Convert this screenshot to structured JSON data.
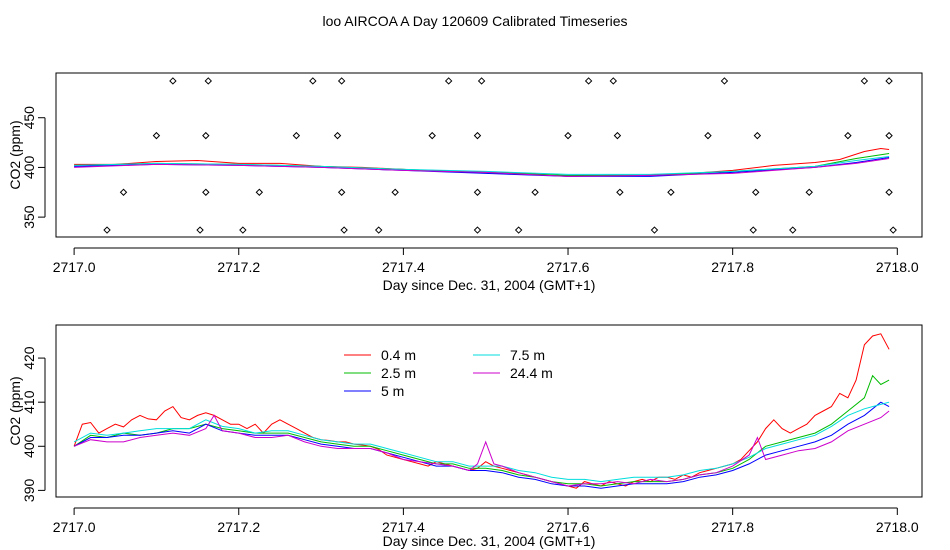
{
  "main_title": "loo AIRCOA A  Day 120609  Calibrated Timeseries",
  "chart_data": [
    {
      "type": "line",
      "xlabel": "Day since Dec. 31, 2004 (GMT+1)",
      "ylabel": "CO2 (ppm)",
      "xlim": [
        2716.978,
        2718.03
      ],
      "ylim": [
        330,
        495
      ],
      "x_ticks": [
        2717.0,
        2717.2,
        2717.4,
        2717.6,
        2717.8,
        2718.0
      ],
      "x_tick_labels": [
        "2717.0",
        "2717.2",
        "2717.4",
        "2717.6",
        "2717.8",
        "2718.0"
      ],
      "y_ticks": [
        350,
        400,
        450
      ],
      "y_tick_labels": [
        "350",
        "400",
        "450"
      ],
      "grid": false,
      "series": [
        {
          "color": "#ff0000",
          "x": [
            2717.0,
            2717.05,
            2717.1,
            2717.15,
            2717.2,
            2717.25,
            2717.3,
            2717.35,
            2717.4,
            2717.45,
            2717.5,
            2717.55,
            2717.6,
            2717.65,
            2717.7,
            2717.75,
            2717.8,
            2717.85,
            2717.9,
            2717.93,
            2717.96,
            2717.98,
            2717.99
          ],
          "y": [
            403,
            403,
            406,
            407,
            404,
            404,
            401,
            400,
            398,
            396,
            395,
            394,
            391,
            392,
            392,
            394,
            397,
            402,
            405,
            408,
            416,
            419,
            418
          ]
        },
        {
          "color": "#00bb00",
          "x": [
            2717.0,
            2717.1,
            2717.2,
            2717.3,
            2717.4,
            2717.5,
            2717.6,
            2717.7,
            2717.8,
            2717.9,
            2717.95,
            2717.99
          ],
          "y": [
            402,
            404,
            403,
            401,
            398,
            395,
            392,
            392,
            396,
            401,
            409,
            414
          ]
        },
        {
          "color": "#0000ff",
          "x": [
            2717.0,
            2717.1,
            2717.2,
            2717.3,
            2717.4,
            2717.5,
            2717.6,
            2717.7,
            2717.8,
            2717.9,
            2717.95,
            2717.99
          ],
          "y": [
            401,
            403,
            402,
            400,
            397,
            394,
            391,
            391,
            395,
            400,
            405,
            410
          ]
        },
        {
          "color": "#00dddd",
          "x": [
            2717.0,
            2717.1,
            2717.2,
            2717.3,
            2717.4,
            2717.5,
            2717.6,
            2717.7,
            2717.8,
            2717.9,
            2717.95,
            2717.99
          ],
          "y": [
            402,
            404,
            403,
            401,
            398,
            396,
            393,
            393,
            396,
            401,
            407,
            411
          ]
        },
        {
          "color": "#cc00cc",
          "x": [
            2717.0,
            2717.1,
            2717.2,
            2717.3,
            2717.4,
            2717.5,
            2717.6,
            2717.7,
            2717.8,
            2717.9,
            2717.95,
            2717.99
          ],
          "y": [
            400,
            403,
            402,
            400,
            397,
            395,
            391,
            392,
            394,
            400,
            404,
            409
          ]
        }
      ],
      "points": {
        "x": [
          2717.04,
          2717.06,
          2717.1,
          2717.12,
          2717.153,
          2717.16,
          2717.16,
          2717.163,
          2717.205,
          2717.225,
          2717.27,
          2717.29,
          2717.32,
          2717.325,
          2717.325,
          2717.328,
          2717.37,
          2717.39,
          2717.435,
          2717.455,
          2717.49,
          2717.49,
          2717.49,
          2717.495,
          2717.54,
          2717.56,
          2717.6,
          2717.625,
          2717.655,
          2717.66,
          2717.663,
          2717.705,
          2717.725,
          2717.77,
          2717.79,
          2717.825,
          2717.828,
          2717.83,
          2717.873,
          2717.893,
          2717.94,
          2717.96,
          2717.99,
          2717.99,
          2717.99,
          2717.995
        ],
        "y": [
          337,
          375,
          432,
          487,
          337,
          375,
          432,
          487,
          337,
          375,
          432,
          487,
          432,
          375,
          487,
          337,
          337,
          375,
          432,
          487,
          432,
          375,
          337,
          487,
          337,
          375,
          432,
          487,
          487,
          432,
          375,
          337,
          375,
          432,
          487,
          337,
          375,
          432,
          337,
          375,
          432,
          487,
          487,
          432,
          375,
          337
        ]
      }
    },
    {
      "type": "line",
      "xlabel": "Day since Dec. 31, 2004 (GMT+1)",
      "ylabel": "CO2 (ppm)",
      "xlim": [
        2716.978,
        2718.03
      ],
      "ylim": [
        388.5,
        427.5
      ],
      "x_ticks": [
        2717.0,
        2717.2,
        2717.4,
        2717.6,
        2717.8,
        2718.0
      ],
      "x_tick_labels": [
        "2717.0",
        "2717.2",
        "2717.4",
        "2717.6",
        "2717.8",
        "2718.0"
      ],
      "y_ticks": [
        390,
        400,
        410,
        420
      ],
      "y_tick_labels": [
        "390",
        "400",
        "410",
        "420"
      ],
      "grid": false,
      "legend_position": "top-left",
      "series": [
        {
          "name": "0.4 m",
          "color": "#ff0000",
          "x": [
            2717.0,
            2717.01,
            2717.02,
            2717.03,
            2717.04,
            2717.05,
            2717.06,
            2717.07,
            2717.08,
            2717.09,
            2717.1,
            2717.11,
            2717.12,
            2717.13,
            2717.14,
            2717.15,
            2717.16,
            2717.17,
            2717.18,
            2717.19,
            2717.2,
            2717.21,
            2717.22,
            2717.23,
            2717.24,
            2717.25,
            2717.26,
            2717.27,
            2717.28,
            2717.29,
            2717.3,
            2717.31,
            2717.32,
            2717.33,
            2717.34,
            2717.35,
            2717.36,
            2717.37,
            2717.38,
            2717.39,
            2717.4,
            2717.41,
            2717.42,
            2717.43,
            2717.44,
            2717.45,
            2717.46,
            2717.47,
            2717.48,
            2717.49,
            2717.5,
            2717.51,
            2717.52,
            2717.53,
            2717.54,
            2717.55,
            2717.56,
            2717.57,
            2717.58,
            2717.59,
            2717.6,
            2717.61,
            2717.62,
            2717.63,
            2717.64,
            2717.65,
            2717.66,
            2717.67,
            2717.68,
            2717.69,
            2717.7,
            2717.71,
            2717.72,
            2717.73,
            2717.74,
            2717.75,
            2717.76,
            2717.77,
            2717.78,
            2717.79,
            2717.8,
            2717.81,
            2717.82,
            2717.83,
            2717.84,
            2717.85,
            2717.86,
            2717.87,
            2717.88,
            2717.89,
            2717.9,
            2717.91,
            2717.92,
            2717.93,
            2717.94,
            2717.95,
            2717.96,
            2717.97,
            2717.98,
            2717.99
          ],
          "y": [
            400.0,
            405.0,
            405.4,
            403.0,
            404.0,
            405.0,
            404.4,
            406.0,
            407.0,
            406.2,
            406.0,
            408.0,
            409.0,
            406.5,
            406.0,
            407.0,
            407.6,
            407.0,
            406.0,
            405.0,
            405.0,
            404.0,
            405.0,
            403.0,
            405.0,
            406.0,
            405.0,
            404.0,
            403.0,
            402.0,
            401.5,
            401.3,
            401.0,
            401.0,
            400.5,
            400.3,
            400.0,
            399.3,
            398.0,
            397.5,
            397.0,
            396.5,
            396.0,
            395.5,
            396.5,
            396.0,
            395.5,
            395.0,
            394.5,
            395.0,
            396.5,
            395.5,
            395.0,
            394.5,
            394.0,
            393.5,
            393.0,
            392.5,
            392.0,
            391.5,
            391.0,
            390.5,
            392.0,
            391.5,
            391.0,
            392.0,
            391.5,
            391.0,
            392.0,
            392.5,
            392.0,
            393.0,
            393.0,
            392.5,
            393.5,
            393.0,
            394.0,
            394.5,
            395.0,
            395.5,
            396.0,
            397.0,
            399.0,
            401.0,
            404.0,
            406.0,
            404.0,
            403.0,
            404.0,
            405.0,
            407.0,
            408.0,
            409.0,
            412.0,
            411.0,
            415.0,
            423.0,
            425.0,
            425.5,
            422.0
          ]
        },
        {
          "name": "2.5 m",
          "color": "#00bb00",
          "x": [
            2717.0,
            2717.02,
            2717.04,
            2717.06,
            2717.08,
            2717.1,
            2717.12,
            2717.14,
            2717.16,
            2717.18,
            2717.2,
            2717.22,
            2717.24,
            2717.26,
            2717.28,
            2717.3,
            2717.32,
            2717.34,
            2717.36,
            2717.38,
            2717.4,
            2717.42,
            2717.44,
            2717.46,
            2717.48,
            2717.5,
            2717.52,
            2717.54,
            2717.56,
            2717.58,
            2717.6,
            2717.62,
            2717.64,
            2717.66,
            2717.68,
            2717.7,
            2717.72,
            2717.74,
            2717.76,
            2717.78,
            2717.8,
            2717.82,
            2717.84,
            2717.86,
            2717.88,
            2717.9,
            2717.92,
            2717.94,
            2717.96,
            2717.97,
            2717.98,
            2717.99
          ],
          "y": [
            400.0,
            402.5,
            402.0,
            403.0,
            402.5,
            403.0,
            404.0,
            404.0,
            405.0,
            404.0,
            403.5,
            403.0,
            403.0,
            403.0,
            402.0,
            401.0,
            400.5,
            400.0,
            400.0,
            399.0,
            398.0,
            397.0,
            396.0,
            396.0,
            395.0,
            395.0,
            394.5,
            393.5,
            393.0,
            392.0,
            391.5,
            391.5,
            391.0,
            391.5,
            392.0,
            392.0,
            392.0,
            392.5,
            393.5,
            394.0,
            395.0,
            397.0,
            400.0,
            401.0,
            402.0,
            403.0,
            405.0,
            408.0,
            411.0,
            416.0,
            414.0,
            415.0
          ]
        },
        {
          "name": "5 m",
          "color": "#0000ff",
          "x": [
            2717.0,
            2717.02,
            2717.04,
            2717.06,
            2717.08,
            2717.1,
            2717.12,
            2717.14,
            2717.16,
            2717.18,
            2717.2,
            2717.22,
            2717.24,
            2717.26,
            2717.28,
            2717.3,
            2717.32,
            2717.34,
            2717.36,
            2717.38,
            2717.4,
            2717.42,
            2717.44,
            2717.46,
            2717.48,
            2717.5,
            2717.52,
            2717.54,
            2717.56,
            2717.58,
            2717.6,
            2717.62,
            2717.64,
            2717.66,
            2717.68,
            2717.7,
            2717.72,
            2717.74,
            2717.76,
            2717.78,
            2717.8,
            2717.82,
            2717.84,
            2717.86,
            2717.88,
            2717.9,
            2717.92,
            2717.94,
            2717.96,
            2717.98,
            2717.99
          ],
          "y": [
            400.0,
            402.0,
            402.0,
            402.5,
            402.5,
            403.0,
            403.5,
            403.0,
            405.0,
            403.5,
            403.0,
            402.5,
            402.5,
            402.5,
            401.5,
            400.5,
            400.0,
            399.5,
            399.5,
            398.5,
            397.5,
            396.5,
            395.5,
            395.5,
            394.5,
            394.5,
            394.0,
            393.0,
            392.5,
            391.5,
            391.0,
            391.0,
            390.5,
            391.0,
            391.5,
            391.5,
            391.5,
            392.0,
            393.0,
            393.5,
            394.5,
            396.0,
            398.0,
            399.0,
            400.0,
            401.0,
            402.5,
            405.0,
            407.0,
            410.0,
            409.0
          ]
        },
        {
          "name": "7.5 m",
          "color": "#00dddd",
          "x": [
            2717.0,
            2717.02,
            2717.04,
            2717.06,
            2717.08,
            2717.1,
            2717.12,
            2717.14,
            2717.16,
            2717.18,
            2717.2,
            2717.22,
            2717.24,
            2717.26,
            2717.28,
            2717.3,
            2717.32,
            2717.34,
            2717.36,
            2717.38,
            2717.4,
            2717.42,
            2717.44,
            2717.46,
            2717.48,
            2717.5,
            2717.52,
            2717.54,
            2717.56,
            2717.58,
            2717.6,
            2717.62,
            2717.64,
            2717.66,
            2717.68,
            2717.7,
            2717.72,
            2717.74,
            2717.76,
            2717.78,
            2717.8,
            2717.82,
            2717.84,
            2717.86,
            2717.88,
            2717.9,
            2717.92,
            2717.94,
            2717.96,
            2717.98,
            2717.99
          ],
          "y": [
            401.0,
            403.0,
            402.5,
            403.0,
            403.5,
            404.0,
            404.0,
            404.0,
            406.0,
            404.5,
            404.0,
            403.0,
            403.5,
            403.5,
            402.5,
            401.5,
            401.0,
            400.5,
            400.5,
            399.5,
            398.5,
            397.5,
            396.5,
            396.5,
            395.5,
            395.5,
            395.5,
            394.5,
            394.0,
            393.0,
            392.5,
            392.5,
            392.0,
            392.5,
            393.0,
            393.0,
            393.0,
            393.5,
            394.5,
            395.0,
            396.0,
            397.5,
            399.5,
            400.5,
            401.5,
            402.5,
            404.5,
            407.0,
            408.5,
            409.5,
            410.0
          ]
        },
        {
          "name": "24.4 m",
          "color": "#cc00cc",
          "x": [
            2717.0,
            2717.02,
            2717.04,
            2717.06,
            2717.08,
            2717.1,
            2717.12,
            2717.14,
            2717.16,
            2717.17,
            2717.18,
            2717.2,
            2717.22,
            2717.24,
            2717.26,
            2717.28,
            2717.3,
            2717.32,
            2717.34,
            2717.36,
            2717.38,
            2717.4,
            2717.42,
            2717.44,
            2717.46,
            2717.48,
            2717.49,
            2717.5,
            2717.51,
            2717.52,
            2717.54,
            2717.56,
            2717.58,
            2717.6,
            2717.62,
            2717.64,
            2717.66,
            2717.68,
            2717.7,
            2717.72,
            2717.74,
            2717.76,
            2717.78,
            2717.8,
            2717.82,
            2717.83,
            2717.84,
            2717.86,
            2717.88,
            2717.9,
            2717.92,
            2717.94,
            2717.96,
            2717.98,
            2717.99
          ],
          "y": [
            400.0,
            401.5,
            401.0,
            401.0,
            402.0,
            402.5,
            403.0,
            402.5,
            404.0,
            407.0,
            403.5,
            403.0,
            402.0,
            402.0,
            402.5,
            401.0,
            400.0,
            399.5,
            399.5,
            399.5,
            398.5,
            397.0,
            396.5,
            396.0,
            395.5,
            394.5,
            396.0,
            401.0,
            396.0,
            395.5,
            394.0,
            393.0,
            392.0,
            391.0,
            391.5,
            391.5,
            392.0,
            391.5,
            392.5,
            392.0,
            392.5,
            393.5,
            394.0,
            395.5,
            398.0,
            402.0,
            397.0,
            398.0,
            399.0,
            399.5,
            401.0,
            403.5,
            405.0,
            406.5,
            408.0
          ]
        }
      ]
    }
  ]
}
